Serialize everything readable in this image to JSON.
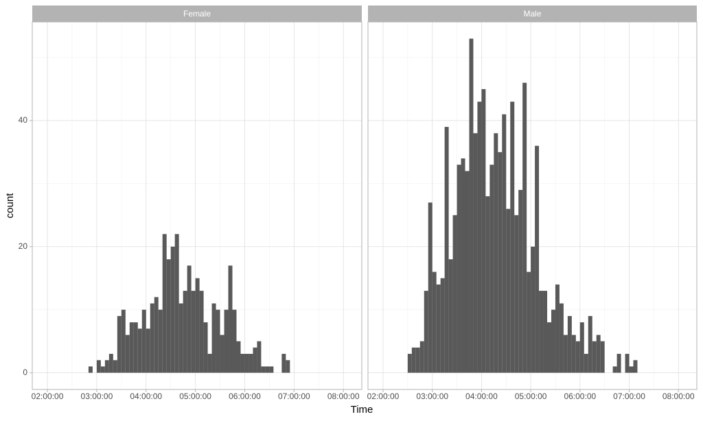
{
  "x_label": "Time",
  "y_label": "count",
  "chart_data": [
    {
      "type": "histogram",
      "title": "Female",
      "color": "#595959",
      "bins": [
        170,
        175,
        180,
        185,
        190,
        195,
        200,
        205,
        210,
        215,
        220,
        225,
        230,
        235,
        240,
        245,
        250,
        255,
        260,
        265,
        270,
        275,
        280,
        285,
        290,
        295,
        300,
        305,
        310,
        315,
        320,
        325,
        330,
        335,
        340,
        345,
        350,
        355,
        360,
        365,
        370,
        375,
        380,
        385,
        390,
        395,
        400,
        405,
        410,
        415
      ],
      "values": [
        1,
        0,
        2,
        1,
        2,
        3,
        2,
        9,
        10,
        6,
        8,
        8,
        7,
        10,
        7,
        11,
        12,
        10,
        22,
        18,
        20,
        22,
        11,
        13,
        17,
        13,
        15,
        13,
        8,
        3,
        11,
        10,
        6,
        10,
        17,
        10,
        5,
        3,
        3,
        3,
        4,
        5,
        1,
        1,
        1,
        0,
        0,
        3,
        2
      ],
      "xlim": [
        101.6,
        502.4
      ],
      "xticks": [
        {
          "value": 120,
          "label": "02:00:00"
        },
        {
          "value": 180,
          "label": "03:00:00"
        },
        {
          "value": 240,
          "label": "04:00:00"
        },
        {
          "value": 300,
          "label": "05:00:00"
        },
        {
          "value": 360,
          "label": "06:00:00"
        },
        {
          "value": 420,
          "label": "07:00:00"
        },
        {
          "value": 480,
          "label": "08:00:00"
        }
      ],
      "minor_xticks": [
        150,
        210,
        270,
        330,
        390,
        450
      ],
      "ylim": [
        -2.65,
        55.65
      ],
      "yticks": [
        0,
        20,
        40
      ],
      "minor_yticks": [
        10,
        30,
        50
      ],
      "grid": true
    },
    {
      "type": "histogram",
      "title": "Male",
      "color": "#595959",
      "bins": [
        150,
        155,
        160,
        165,
        170,
        175,
        180,
        185,
        190,
        195,
        200,
        205,
        210,
        215,
        220,
        225,
        230,
        235,
        240,
        245,
        250,
        255,
        260,
        265,
        270,
        275,
        280,
        285,
        290,
        295,
        300,
        305,
        310,
        315,
        320,
        325,
        330,
        335,
        340,
        345,
        350,
        355,
        360,
        365,
        370,
        375,
        380,
        385,
        390,
        395,
        400,
        405,
        410,
        415,
        420,
        425,
        430
      ],
      "values": [
        3,
        4,
        4,
        5,
        13,
        27,
        16,
        14,
        15,
        39,
        18,
        25,
        33,
        34,
        32,
        53,
        38,
        43,
        45,
        28,
        33,
        38,
        35,
        41,
        26,
        43,
        25,
        29,
        46,
        16,
        20,
        36,
        13,
        13,
        8,
        10,
        14,
        11,
        6,
        9,
        6,
        5,
        8,
        3,
        9,
        5,
        6,
        5,
        0,
        0,
        1,
        3,
        0,
        3,
        1,
        2
      ],
      "xlim": [
        101.6,
        502.4
      ],
      "xticks": [
        {
          "value": 120,
          "label": "02:00:00"
        },
        {
          "value": 180,
          "label": "03:00:00"
        },
        {
          "value": 240,
          "label": "04:00:00"
        },
        {
          "value": 300,
          "label": "05:00:00"
        },
        {
          "value": 360,
          "label": "06:00:00"
        },
        {
          "value": 420,
          "label": "07:00:00"
        },
        {
          "value": 480,
          "label": "08:00:00"
        }
      ],
      "minor_xticks": [
        150,
        210,
        270,
        330,
        390,
        450
      ],
      "ylim": [
        -2.65,
        55.65
      ],
      "yticks": [
        0,
        20,
        40
      ],
      "minor_yticks": [
        10,
        30,
        50
      ],
      "grid": true
    }
  ]
}
